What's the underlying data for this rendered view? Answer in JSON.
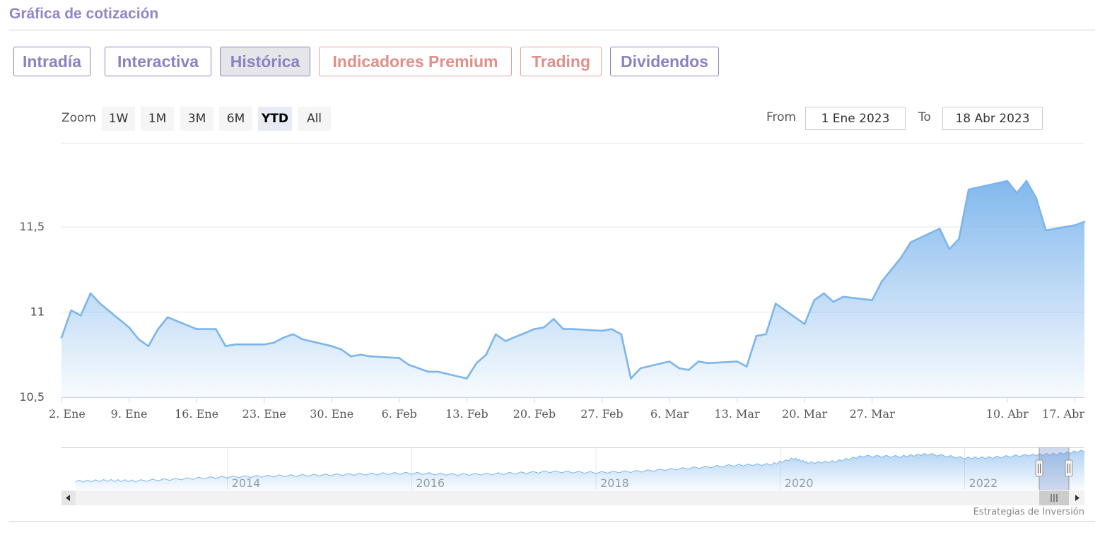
{
  "section": {
    "title": "Gráfica de cotización"
  },
  "tabs": [
    {
      "label": "Intradía",
      "style": "purple",
      "active": false
    },
    {
      "label": "Interactiva",
      "style": "purple",
      "active": false
    },
    {
      "label": "Histórica",
      "style": "purple",
      "active": true
    },
    {
      "label": "Indicadores Premium",
      "style": "salmon",
      "active": false
    },
    {
      "label": "Trading",
      "style": "salmon",
      "active": false
    },
    {
      "label": "Dividendos",
      "style": "purple",
      "active": false
    }
  ],
  "zoom": {
    "label": "Zoom",
    "buttons": [
      "1W",
      "1M",
      "3M",
      "6M",
      "YTD",
      "All"
    ],
    "selected": "YTD"
  },
  "range": {
    "from_label": "From",
    "from_value": "1 Ene 2023",
    "to_label": "To",
    "to_value": "18 Abr 2023"
  },
  "credits": "Estrategias de Inversión",
  "colors": {
    "line": "#7cb5ec",
    "title": "#8f87c6",
    "tab_purple": "#8983c2",
    "tab_salmon": "#e08f8a"
  },
  "chart_data": {
    "type": "area",
    "x_start": "2023-01-02",
    "x_end": "2023-04-18",
    "ylim": [
      10.5,
      11.99
    ],
    "yticks": [
      10.5,
      11,
      11.5
    ],
    "ytick_labels": [
      "10,5",
      "11",
      "11,5"
    ],
    "xtick_labels": [
      {
        "date": "2023-01-02",
        "label": "2. Ene"
      },
      {
        "date": "2023-01-09",
        "label": "9. Ene"
      },
      {
        "date": "2023-01-16",
        "label": "16. Ene"
      },
      {
        "date": "2023-01-23",
        "label": "23. Ene"
      },
      {
        "date": "2023-01-30",
        "label": "30. Ene"
      },
      {
        "date": "2023-02-06",
        "label": "6. Feb"
      },
      {
        "date": "2023-02-13",
        "label": "13. Feb"
      },
      {
        "date": "2023-02-20",
        "label": "20. Feb"
      },
      {
        "date": "2023-02-27",
        "label": "27. Feb"
      },
      {
        "date": "2023-03-06",
        "label": "6. Mar"
      },
      {
        "date": "2023-03-13",
        "label": "13. Mar"
      },
      {
        "date": "2023-03-20",
        "label": "20. Mar"
      },
      {
        "date": "2023-03-27",
        "label": "27. Mar"
      },
      {
        "date": "2023-04-10",
        "label": "10. Abr"
      },
      {
        "date": "2023-04-17",
        "label": "17. Abr"
      }
    ],
    "grid": true,
    "legend": false,
    "series": [
      {
        "points": [
          [
            "2023-01-02",
            10.85
          ],
          [
            "2023-01-03",
            11.01
          ],
          [
            "2023-01-04",
            10.98
          ],
          [
            "2023-01-05",
            11.11
          ],
          [
            "2023-01-06",
            11.05
          ],
          [
            "2023-01-09",
            10.91
          ],
          [
            "2023-01-10",
            10.84
          ],
          [
            "2023-01-11",
            10.8
          ],
          [
            "2023-01-12",
            10.9
          ],
          [
            "2023-01-13",
            10.97
          ],
          [
            "2023-01-16",
            10.9
          ],
          [
            "2023-01-17",
            10.9
          ],
          [
            "2023-01-18",
            10.9
          ],
          [
            "2023-01-19",
            10.8
          ],
          [
            "2023-01-20",
            10.81
          ],
          [
            "2023-01-23",
            10.81
          ],
          [
            "2023-01-24",
            10.82
          ],
          [
            "2023-01-25",
            10.85
          ],
          [
            "2023-01-26",
            10.87
          ],
          [
            "2023-01-27",
            10.84
          ],
          [
            "2023-01-30",
            10.8
          ],
          [
            "2023-01-31",
            10.78
          ],
          [
            "2023-02-01",
            10.74
          ],
          [
            "2023-02-02",
            10.75
          ],
          [
            "2023-02-03",
            10.74
          ],
          [
            "2023-02-06",
            10.73
          ],
          [
            "2023-02-07",
            10.69
          ],
          [
            "2023-02-08",
            10.67
          ],
          [
            "2023-02-09",
            10.65
          ],
          [
            "2023-02-10",
            10.65
          ],
          [
            "2023-02-13",
            10.61
          ],
          [
            "2023-02-14",
            10.7
          ],
          [
            "2023-02-15",
            10.75
          ],
          [
            "2023-02-16",
            10.87
          ],
          [
            "2023-02-17",
            10.83
          ],
          [
            "2023-02-20",
            10.9
          ],
          [
            "2023-02-21",
            10.91
          ],
          [
            "2023-02-22",
            10.96
          ],
          [
            "2023-02-23",
            10.9
          ],
          [
            "2023-02-24",
            10.9
          ],
          [
            "2023-02-27",
            10.89
          ],
          [
            "2023-02-28",
            10.9
          ],
          [
            "2023-03-01",
            10.87
          ],
          [
            "2023-03-02",
            10.61
          ],
          [
            "2023-03-03",
            10.67
          ],
          [
            "2023-03-06",
            10.71
          ],
          [
            "2023-03-07",
            10.67
          ],
          [
            "2023-03-08",
            10.66
          ],
          [
            "2023-03-09",
            10.71
          ],
          [
            "2023-03-10",
            10.7
          ],
          [
            "2023-03-13",
            10.71
          ],
          [
            "2023-03-14",
            10.68
          ],
          [
            "2023-03-15",
            10.86
          ],
          [
            "2023-03-16",
            10.87
          ],
          [
            "2023-03-17",
            11.05
          ],
          [
            "2023-03-20",
            10.93
          ],
          [
            "2023-03-21",
            11.07
          ],
          [
            "2023-03-22",
            11.11
          ],
          [
            "2023-03-23",
            11.06
          ],
          [
            "2023-03-24",
            11.09
          ],
          [
            "2023-03-27",
            11.07
          ],
          [
            "2023-03-28",
            11.18
          ],
          [
            "2023-03-29",
            11.25
          ],
          [
            "2023-03-30",
            11.32
          ],
          [
            "2023-03-31",
            11.41
          ],
          [
            "2023-04-03",
            11.49
          ],
          [
            "2023-04-04",
            11.37
          ],
          [
            "2023-04-05",
            11.43
          ],
          [
            "2023-04-06",
            11.72
          ],
          [
            "2023-04-10",
            11.77
          ],
          [
            "2023-04-11",
            11.7
          ],
          [
            "2023-04-12",
            11.77
          ],
          [
            "2023-04-13",
            11.67
          ],
          [
            "2023-04-14",
            11.48
          ],
          [
            "2023-04-17",
            11.51
          ],
          [
            "2023-04-18",
            11.53
          ]
        ]
      }
    ],
    "navigator": {
      "year_labels": [
        "2014",
        "2016",
        "2018",
        "2020",
        "2022"
      ],
      "years": [
        2014,
        2016,
        2018,
        2020,
        2022
      ],
      "start_year": 2012.2,
      "end_year": 2023.3,
      "series": [
        [
          2012.35,
          5.2
        ],
        [
          2012.7,
          5.4
        ],
        [
          2013.0,
          5.3
        ],
        [
          2013.5,
          5.7
        ],
        [
          2014.0,
          6.1
        ],
        [
          2014.5,
          6.3
        ],
        [
          2015.0,
          6.5
        ],
        [
          2015.5,
          6.7
        ],
        [
          2016.0,
          6.9
        ],
        [
          2016.5,
          6.6
        ],
        [
          2017.0,
          6.8
        ],
        [
          2017.5,
          7.2
        ],
        [
          2018.0,
          7.0
        ],
        [
          2018.5,
          7.3
        ],
        [
          2019.0,
          7.9
        ],
        [
          2019.5,
          8.5
        ],
        [
          2019.9,
          8.7
        ],
        [
          2020.15,
          9.9
        ],
        [
          2020.3,
          9.0
        ],
        [
          2020.6,
          9.3
        ],
        [
          2020.9,
          10.4
        ],
        [
          2021.3,
          10.3
        ],
        [
          2021.6,
          10.8
        ],
        [
          2022.0,
          10.0
        ],
        [
          2022.3,
          10.1
        ],
        [
          2022.7,
          10.6
        ],
        [
          2023.0,
          10.8
        ],
        [
          2023.3,
          11.5
        ]
      ]
    }
  }
}
